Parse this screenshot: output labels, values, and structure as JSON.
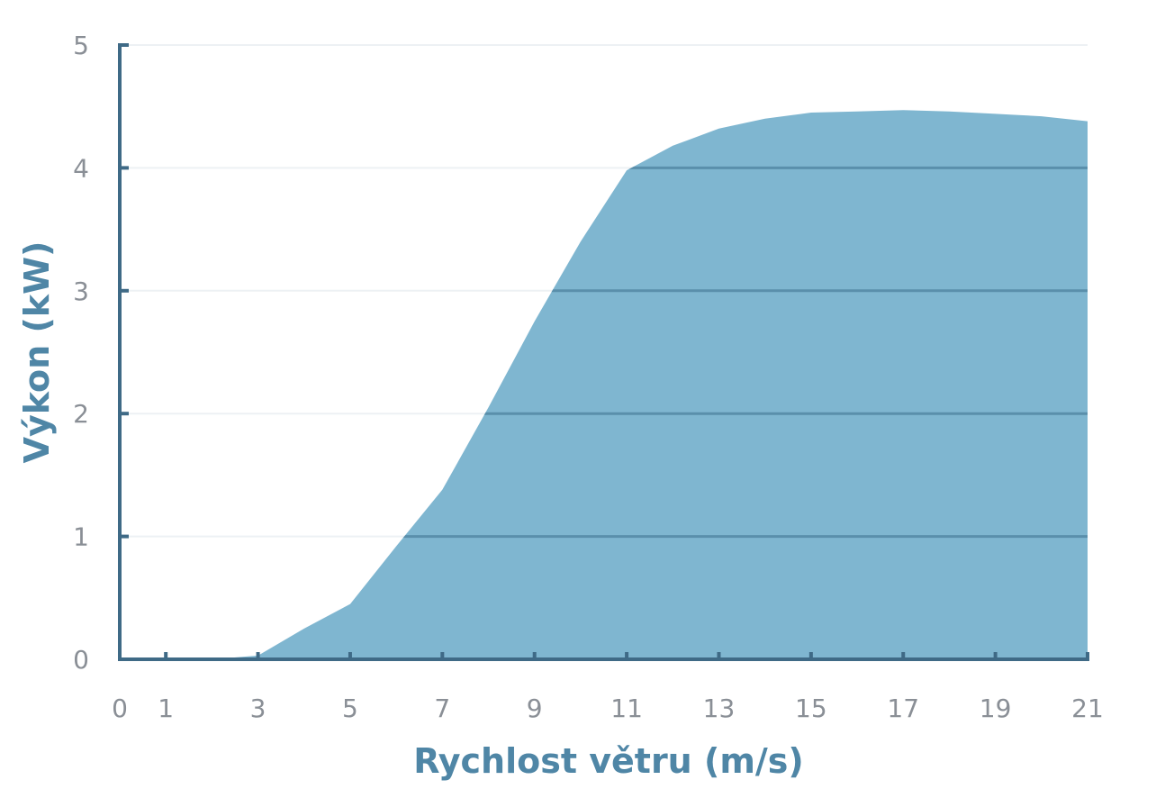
{
  "chart_data": {
    "type": "area",
    "title": "",
    "xlabel": "Rychlost větru (m/s)",
    "ylabel": "Výkon (kW)",
    "xlim": [
      0,
      21
    ],
    "ylim": [
      0,
      5
    ],
    "x_ticks": [
      0,
      1,
      3,
      5,
      7,
      9,
      11,
      13,
      15,
      17,
      19,
      21
    ],
    "y_ticks": [
      0,
      1,
      2,
      3,
      4,
      5
    ],
    "grid": true,
    "legend": "none",
    "colors": {
      "fill": "#7fb6d0",
      "axis": "#3f6a86",
      "grid_over_fill": "#5a8fab",
      "grid_plain": "#edf1f4",
      "title_text": "#4f86a6",
      "tick_text": "#8a8f96"
    },
    "series": [
      {
        "x": [
          0,
          1,
          2,
          3,
          4,
          5,
          6,
          7,
          8,
          9,
          10,
          11,
          12,
          13,
          14,
          15,
          16,
          17,
          18,
          19,
          20,
          21
        ],
        "values": [
          0,
          0,
          0,
          0.03,
          0.25,
          0.45,
          0.92,
          1.38,
          2.05,
          2.75,
          3.4,
          3.98,
          4.18,
          4.32,
          4.4,
          4.45,
          4.46,
          4.47,
          4.46,
          4.44,
          4.42,
          4.38
        ]
      }
    ]
  }
}
